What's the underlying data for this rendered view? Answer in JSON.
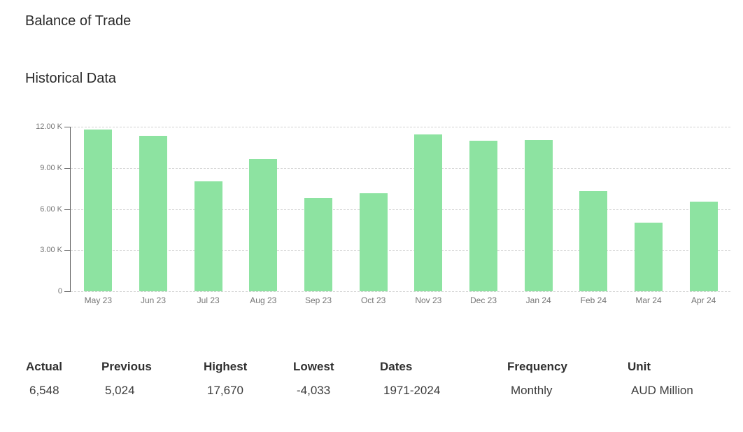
{
  "page": {
    "title": "Balance of Trade",
    "section_title": "Historical Data"
  },
  "chart_data": {
    "type": "bar",
    "title": "Balance of Trade - Historical Data",
    "xlabel": "",
    "ylabel": "",
    "unit": "AUD Million",
    "categories": [
      "May 23",
      "Jun 23",
      "Jul 23",
      "Aug 23",
      "Sep 23",
      "Oct 23",
      "Nov 23",
      "Dec 23",
      "Jan 24",
      "Feb 24",
      "Mar 24",
      "Apr 24"
    ],
    "values": [
      11791,
      11321,
      8039,
      9640,
      6786,
      7129,
      11437,
      10959,
      11027,
      7280,
      5024,
      6548
    ],
    "ylim": [
      0,
      12000
    ],
    "yticks": [
      {
        "value": 0,
        "label": "0"
      },
      {
        "value": 3000,
        "label": "3.00 K"
      },
      {
        "value": 6000,
        "label": "6.00 K"
      },
      {
        "value": 9000,
        "label": "9.00 K"
      },
      {
        "value": 12000,
        "label": "12.00 K"
      }
    ],
    "grid": true,
    "legend_position": "none",
    "bar_color": "#8de3a1",
    "grid_color": "#d2d2d2",
    "axis_color": "#616161",
    "tick_label_color": "#757575"
  },
  "summary": {
    "columns": [
      {
        "label": "Actual",
        "value": "6,548"
      },
      {
        "label": "Previous",
        "value": "5,024"
      },
      {
        "label": "Highest",
        "value": "17,670"
      },
      {
        "label": "Lowest",
        "value": "-4,033"
      },
      {
        "label": "Dates",
        "value": "1971-2024"
      },
      {
        "label": "Frequency",
        "value": "Monthly"
      },
      {
        "label": "Unit",
        "value": "AUD Million"
      }
    ]
  }
}
